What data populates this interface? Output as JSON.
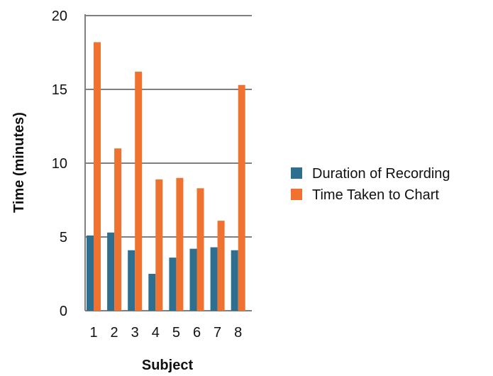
{
  "chart_data": {
    "type": "bar",
    "title": "",
    "xlabel": "Subject",
    "ylabel": "Time (minutes)",
    "categories": [
      "1",
      "2",
      "3",
      "4",
      "5",
      "6",
      "7",
      "8"
    ],
    "series": [
      {
        "name": "Duration of Recording",
        "color": "#2e6e8e",
        "values": [
          5.1,
          5.3,
          4.1,
          2.5,
          3.6,
          4.2,
          4.3,
          4.1
        ]
      },
      {
        "name": "Time Taken to Chart",
        "color": "#f07230",
        "values": [
          18.2,
          11.0,
          16.2,
          8.9,
          9.0,
          8.3,
          6.1,
          15.3
        ]
      }
    ],
    "ylim": [
      0,
      20
    ],
    "yticks": [
      0,
      5,
      10,
      15,
      20
    ],
    "grid": true,
    "legend_position": "right"
  }
}
